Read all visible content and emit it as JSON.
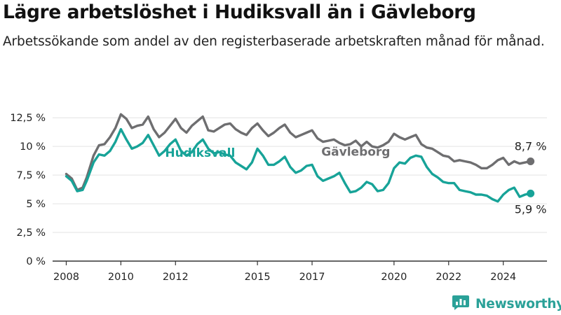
{
  "title": "Lägre arbetslöshet i Hudiksvall än i Gävleborg",
  "subtitle": "Arbetssökande som andel av den registerbaserade arbetskraften månad för månad.",
  "brand": {
    "name": "Newsworthy",
    "icon": "newsworthy-logo-icon"
  },
  "colors": {
    "hudiksvall": "#17a398",
    "gavleborg": "#6e6e70",
    "grid": "#e3e3e3",
    "axis": "#333333"
  },
  "chart_data": {
    "type": "line",
    "title": "Lägre arbetslöshet i Hudiksvall än i Gävleborg",
    "xlabel": "",
    "ylabel": "",
    "xlim": [
      2007.5,
      2025.6
    ],
    "ylim": [
      0,
      13
    ],
    "grid": true,
    "legend": "inline labels",
    "x_ticks": [
      2008,
      2010,
      2012,
      2015,
      2017,
      2020,
      2022,
      2024
    ],
    "x_tick_labels": [
      "2008",
      "2010",
      "2012",
      "2015",
      "2017",
      "2020",
      "2022",
      "2024"
    ],
    "y_ticks": [
      0,
      2.5,
      5,
      7.5,
      10,
      12.5
    ],
    "y_tick_labels": [
      "0 %",
      "2,5 %",
      "5 %",
      "7,5 %",
      "10 %",
      "12,5 %"
    ],
    "series": [
      {
        "name": "Gävleborg",
        "end_label": "8,7 %",
        "x": [
          2008.0,
          2008.2,
          2008.4,
          2008.6,
          2008.75,
          2009.0,
          2009.2,
          2009.4,
          2009.6,
          2009.8,
          2010.0,
          2010.2,
          2010.4,
          2010.6,
          2010.8,
          2011.0,
          2011.2,
          2011.4,
          2011.6,
          2011.8,
          2012.0,
          2012.2,
          2012.4,
          2012.6,
          2012.8,
          2013.0,
          2013.2,
          2013.4,
          2013.6,
          2013.8,
          2014.0,
          2014.2,
          2014.4,
          2014.6,
          2014.8,
          2015.0,
          2015.2,
          2015.4,
          2015.6,
          2015.8,
          2016.0,
          2016.2,
          2016.4,
          2016.6,
          2016.8,
          2017.0,
          2017.2,
          2017.4,
          2017.6,
          2017.8,
          2018.0,
          2018.2,
          2018.4,
          2018.6,
          2018.8,
          2019.0,
          2019.2,
          2019.4,
          2019.6,
          2019.8,
          2020.0,
          2020.2,
          2020.4,
          2020.6,
          2020.8,
          2021.0,
          2021.2,
          2021.4,
          2021.6,
          2021.8,
          2022.0,
          2022.2,
          2022.4,
          2022.6,
          2022.8,
          2023.0,
          2023.2,
          2023.4,
          2023.6,
          2023.8,
          2024.0,
          2024.2,
          2024.4,
          2024.6,
          2024.8,
          2025.0
        ],
        "values": [
          7.6,
          7.2,
          6.2,
          6.4,
          7.3,
          9.2,
          10.1,
          10.2,
          10.8,
          11.6,
          12.8,
          12.4,
          11.6,
          11.8,
          11.9,
          12.6,
          11.5,
          10.8,
          11.2,
          11.8,
          12.4,
          11.6,
          11.2,
          11.8,
          12.2,
          12.6,
          11.4,
          11.3,
          11.6,
          11.9,
          12.0,
          11.5,
          11.2,
          11.0,
          11.6,
          12.0,
          11.4,
          10.9,
          11.2,
          11.6,
          11.9,
          11.2,
          10.8,
          11.0,
          11.2,
          11.4,
          10.7,
          10.4,
          10.5,
          10.6,
          10.3,
          10.1,
          10.2,
          10.5,
          10.0,
          10.4,
          10.0,
          9.9,
          10.1,
          10.4,
          11.1,
          10.8,
          10.6,
          10.8,
          11.0,
          10.2,
          9.9,
          9.8,
          9.5,
          9.2,
          9.1,
          8.7,
          8.8,
          8.7,
          8.6,
          8.4,
          8.1,
          8.1,
          8.4,
          8.8,
          9.0,
          8.4,
          8.7,
          8.5,
          8.6,
          8.7
        ]
      },
      {
        "name": "Hudiksvall",
        "end_label": "5,9 %",
        "x": [
          2008.0,
          2008.2,
          2008.4,
          2008.6,
          2008.75,
          2009.0,
          2009.2,
          2009.4,
          2009.6,
          2009.8,
          2010.0,
          2010.2,
          2010.4,
          2010.6,
          2010.8,
          2011.0,
          2011.2,
          2011.4,
          2011.6,
          2011.8,
          2012.0,
          2012.2,
          2012.4,
          2012.6,
          2012.8,
          2013.0,
          2013.2,
          2013.4,
          2013.6,
          2013.8,
          2014.0,
          2014.2,
          2014.4,
          2014.6,
          2014.8,
          2015.0,
          2015.2,
          2015.4,
          2015.6,
          2015.8,
          2016.0,
          2016.2,
          2016.4,
          2016.6,
          2016.8,
          2017.0,
          2017.2,
          2017.4,
          2017.6,
          2017.8,
          2018.0,
          2018.2,
          2018.4,
          2018.6,
          2018.8,
          2019.0,
          2019.2,
          2019.4,
          2019.6,
          2019.8,
          2020.0,
          2020.2,
          2020.4,
          2020.6,
          2020.8,
          2021.0,
          2021.2,
          2021.4,
          2021.6,
          2021.8,
          2022.0,
          2022.2,
          2022.4,
          2022.6,
          2022.8,
          2023.0,
          2023.2,
          2023.4,
          2023.6,
          2023.8,
          2024.0,
          2024.2,
          2024.4,
          2024.6,
          2024.8,
          2025.0
        ],
        "values": [
          7.4,
          7.0,
          6.1,
          6.2,
          7.0,
          8.6,
          9.3,
          9.2,
          9.6,
          10.4,
          11.5,
          10.6,
          9.8,
          10.0,
          10.3,
          11.0,
          10.1,
          9.2,
          9.6,
          10.2,
          10.6,
          9.6,
          9.2,
          9.5,
          10.2,
          10.6,
          9.8,
          9.4,
          9.5,
          9.3,
          9.2,
          8.6,
          8.3,
          8.0,
          8.6,
          9.8,
          9.2,
          8.4,
          8.4,
          8.7,
          9.1,
          8.2,
          7.7,
          7.9,
          8.3,
          8.4,
          7.4,
          7.0,
          7.2,
          7.4,
          7.7,
          6.8,
          6.0,
          6.1,
          6.4,
          6.9,
          6.7,
          6.1,
          6.2,
          6.8,
          8.1,
          8.6,
          8.5,
          9.0,
          9.2,
          9.1,
          8.2,
          7.6,
          7.3,
          6.9,
          6.8,
          6.8,
          6.2,
          6.1,
          6.0,
          5.8,
          5.8,
          5.7,
          5.4,
          5.2,
          5.8,
          6.2,
          6.4,
          5.6,
          5.8,
          5.9
        ]
      }
    ]
  }
}
